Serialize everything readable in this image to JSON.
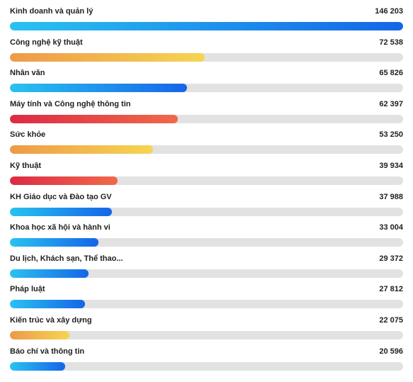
{
  "chart_data": {
    "type": "bar",
    "orientation": "horizontal",
    "title": "",
    "xlabel": "",
    "ylabel": "",
    "grid": false,
    "xlim": [
      0,
      146203
    ],
    "categories": [
      "Kinh doanh và quản lý",
      "Công nghệ kỹ thuật",
      "Nhân văn",
      "Máy tính và Công nghệ thông tin",
      "Sức khỏe",
      "Kỹ thuật",
      "KH Giáo dục và Đào tạo GV",
      "Khoa học xã hội và hành vi",
      "Du lịch, Khách sạn, Thể thao...",
      "Pháp luật",
      "Kiến trúc và xây dựng",
      "Báo chí và thông tin"
    ],
    "values": [
      146203,
      72538,
      65826,
      62397,
      53250,
      39934,
      37988,
      33004,
      29372,
      27812,
      22075,
      20596
    ],
    "value_labels": [
      "146 203",
      "72 538",
      "65 826",
      "62 397",
      "53 250",
      "39 934",
      "37 988",
      "33 004",
      "29 372",
      "27 812",
      "22 075",
      "20 596"
    ],
    "bar_gradients": [
      [
        "#29c2f0",
        "#1565e8"
      ],
      [
        "#ee9a48",
        "#f5d552"
      ],
      [
        "#29c2f0",
        "#1565e8"
      ],
      [
        "#dd2a45",
        "#f0694a"
      ],
      [
        "#ee9a48",
        "#f5d552"
      ],
      [
        "#dd2a45",
        "#f0694a"
      ],
      [
        "#29c2f0",
        "#1565e8"
      ],
      [
        "#29c2f0",
        "#1565e8"
      ],
      [
        "#29c2f0",
        "#1565e8"
      ],
      [
        "#29c2f0",
        "#1565e8"
      ],
      [
        "#ee9a48",
        "#f5d552"
      ],
      [
        "#29c2f0",
        "#1565e8"
      ]
    ],
    "track_color": "#e2e2e2"
  }
}
